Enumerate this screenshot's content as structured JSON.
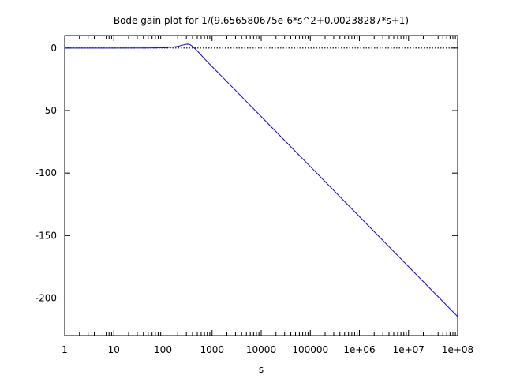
{
  "chart_data": {
    "type": "line",
    "title": "Bode gain plot for 1/(9.656580675e-6*s^2+0.00238287*s+1)",
    "xlabel": "s",
    "ylabel": "",
    "x_scale": "log",
    "xlim": [
      1,
      100000000
    ],
    "ylim": [
      -230,
      10
    ],
    "grid": false,
    "x_ticks": [
      1,
      10,
      100,
      1000,
      10000,
      100000,
      1000000,
      10000000,
      100000000
    ],
    "x_tick_labels": [
      "1",
      "10",
      "100",
      "1000",
      "10000",
      "100000",
      "1e+06",
      "1e+07",
      "1e+08"
    ],
    "y_ticks": [
      0,
      -50,
      -100,
      -150,
      -200
    ],
    "y_tick_labels": [
      "0",
      "-50",
      "-100",
      "-150",
      "-200"
    ],
    "reference_line": {
      "y": 0,
      "style": "dotted",
      "color": "#000000"
    },
    "series": [
      {
        "color": "#0000ff",
        "x": [
          1,
          10,
          50,
          100,
          150,
          200,
          250,
          300,
          322,
          350,
          400,
          500,
          700,
          1000,
          2000,
          5000,
          10000,
          100000,
          1000000,
          10000000,
          100000000
        ],
        "y": [
          0.0,
          0.0,
          0.03,
          0.25,
          0.66,
          1.34,
          2.31,
          3.07,
          3.13,
          2.8,
          1.41,
          -2.33,
          -8.58,
          -14.86,
          -26.83,
          -42.77,
          -54.8,
          -94.8,
          -134.8,
          -174.8,
          -214.8
        ]
      }
    ]
  }
}
